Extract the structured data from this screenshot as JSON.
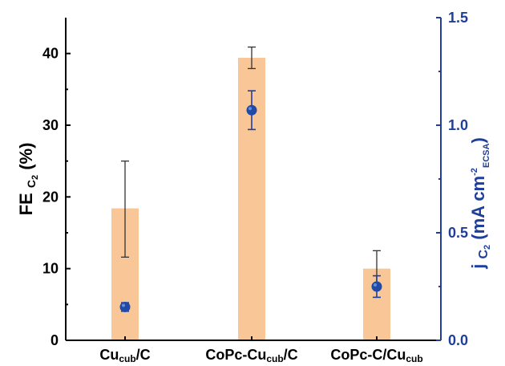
{
  "chart_data": {
    "type": "bar",
    "categories": [
      {
        "main": "Cu",
        "sub": "cub",
        "suffix": "/C",
        "sub2": "",
        "full": "Cucub/C"
      },
      {
        "main": "CoPc-Cu",
        "sub": "cub",
        "suffix": "/C",
        "sub2": "",
        "full": "CoPc-Cucub/C"
      },
      {
        "main": "CoPc-C/Cu",
        "sub": "cub",
        "suffix": "",
        "sub2": "",
        "full": "CoPc-C/Cucub"
      }
    ],
    "series": [
      {
        "values": [
          18.4,
          39.4,
          10.0
        ],
        "errors": [
          [
            11.6,
            25.0
          ],
          [
            37.9,
            40.9
          ],
          [
            7.9,
            12.5
          ]
        ],
        "axis": "left",
        "type": "bar",
        "color": "#f9c697"
      },
      {
        "values": [
          0.155,
          1.07,
          0.25
        ],
        "errors": [
          [
            0.135,
            0.175
          ],
          [
            0.98,
            1.16
          ],
          [
            0.2,
            0.3
          ]
        ],
        "axis": "right",
        "type": "scatter",
        "color": "#1f4aa8"
      }
    ],
    "yleft": {
      "label_main": "FE",
      "label_sub": "C",
      "label_subsub": "2",
      "label_unit": "(%)",
      "ylim": [
        0,
        45
      ],
      "ticks": [
        0,
        10,
        20,
        30,
        40
      ]
    },
    "yright": {
      "label_main": "j",
      "label_sub": "C",
      "label_subsub": "2",
      "label_unit_open": "(mA cm",
      "label_sup": "-2",
      "label_sub2": "ECSA",
      "label_close": ")",
      "ylim": [
        0,
        1.5
      ],
      "ticks": [
        "0.0",
        "0.5",
        "1.0",
        "1.5"
      ]
    },
    "colors": {
      "left_axis": "#000000",
      "right_axis": "#1f3f9a",
      "bar": "#f9c697",
      "marker": "#1f4aa8"
    },
    "grid": false
  }
}
